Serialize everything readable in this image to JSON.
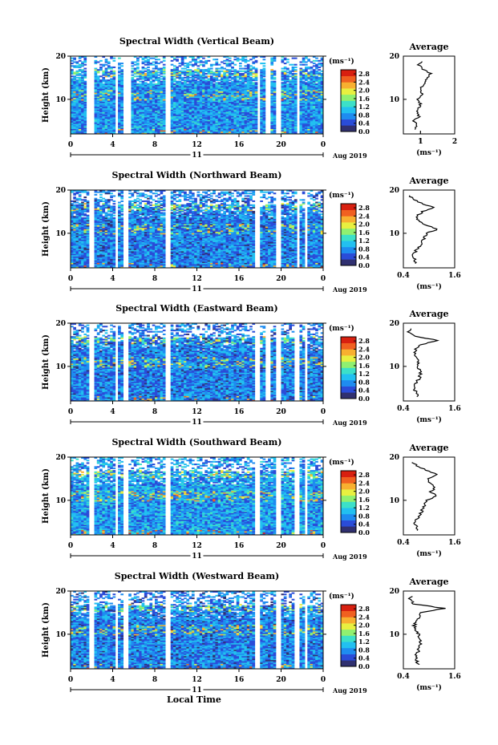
{
  "xaxis_label": "Local Time",
  "date_label": "Aug 2019",
  "day_label": "11",
  "cb_unit_label": "(ms⁻¹)",
  "avg_title": "Average",
  "avg_xlabel": "(ms⁻¹)",
  "colorscale": [
    "#303070",
    "#2a4cd8",
    "#1e8cf0",
    "#22c0f0",
    "#3ce0c8",
    "#90f070",
    "#e8f040",
    "#f8b030",
    "#f06020",
    "#d82010"
  ],
  "chart_data": [
    {
      "type": "heatmap",
      "title": "Spectral Width (Vertical Beam)",
      "ylabel": "Height (km)",
      "xlim": [
        0,
        24
      ],
      "ylim": [
        2,
        20
      ],
      "xticks": [
        "0",
        "4",
        "8",
        "12",
        "16",
        "20",
        "0"
      ],
      "yticks": [
        "10",
        "20"
      ],
      "colorbar": {
        "ticks": [
          "0.0",
          "0.4",
          "0.8",
          "1.2",
          "1.6",
          "2.0",
          "2.4",
          "2.8"
        ],
        "range": [
          0,
          3.0
        ]
      },
      "typical_value": 0.8,
      "data_gaps_hours": [
        [
          1.6,
          2.3
        ],
        [
          4.2,
          4.5
        ],
        [
          5.0,
          5.7
        ],
        [
          9.0,
          9.4
        ],
        [
          17.7,
          18.1
        ],
        [
          18.6,
          18.9
        ],
        [
          19.6,
          20.1
        ],
        [
          21.4,
          21.8
        ],
        [
          22.4,
          22.6
        ]
      ],
      "average_profile": {
        "xlim": [
          0.5,
          2
        ],
        "xticks": [
          "1",
          "1",
          "2"
        ],
        "yticks": [
          "10",
          "20"
        ],
        "height_km": [
          3,
          4,
          5,
          6,
          7,
          8,
          9,
          10,
          11,
          12,
          13,
          14,
          15,
          16,
          17,
          18,
          19
        ],
        "width_ms": [
          0.85,
          0.9,
          0.8,
          0.95,
          0.9,
          0.95,
          1.0,
          0.9,
          1.05,
          1.0,
          1.05,
          1.15,
          1.2,
          1.3,
          1.05,
          0.95,
          1.1
        ]
      }
    },
    {
      "type": "heatmap",
      "title": "Spectral Width (Northward Beam)",
      "ylabel": "Height (km)",
      "xlim": [
        0,
        24
      ],
      "ylim": [
        2,
        20
      ],
      "xticks": [
        "0",
        "4",
        "8",
        "12",
        "16",
        "20",
        "0"
      ],
      "yticks": [
        "10",
        "20"
      ],
      "colorbar": {
        "ticks": [
          "0.0",
          "0.4",
          "0.8",
          "1.2",
          "1.6",
          "2.0",
          "2.4",
          "2.8"
        ],
        "range": [
          0,
          3.0
        ]
      },
      "typical_value": 0.7,
      "data_gaps_hours": [
        [
          1.8,
          2.3
        ],
        [
          4.3,
          4.6
        ],
        [
          5.0,
          5.6
        ],
        [
          9.1,
          9.4
        ],
        [
          17.6,
          18.0
        ],
        [
          19.6,
          20.0
        ],
        [
          21.4,
          21.8
        ],
        [
          22.3,
          22.6
        ]
      ],
      "average_profile": {
        "xlim": [
          0.4,
          1.6
        ],
        "xticks": [
          "0.4",
          "1.6"
        ],
        "yticks": [
          "10",
          "20"
        ],
        "height_km": [
          3,
          4,
          5,
          6,
          7,
          8,
          9,
          10,
          11,
          12,
          13,
          14,
          15,
          16,
          17,
          18,
          19
        ],
        "width_ms": [
          0.7,
          0.65,
          0.6,
          0.7,
          0.8,
          0.85,
          0.9,
          0.95,
          1.2,
          0.9,
          0.75,
          0.7,
          0.85,
          1.1,
          0.8,
          0.6,
          0.55
        ]
      }
    },
    {
      "type": "heatmap",
      "title": "Spectral Width (Eastward Beam)",
      "ylabel": "Height (km)",
      "xlim": [
        0,
        24
      ],
      "ylim": [
        2,
        20
      ],
      "xticks": [
        "0",
        "4",
        "8",
        "12",
        "16",
        "20",
        "0"
      ],
      "yticks": [
        "10",
        "20"
      ],
      "colorbar": {
        "ticks": [
          "0.0",
          "0.4",
          "0.8",
          "1.2",
          "1.6",
          "2.0",
          "2.4",
          "2.8"
        ],
        "range": [
          0,
          3.0
        ]
      },
      "typical_value": 0.7,
      "data_gaps_hours": [
        [
          1.8,
          2.3
        ],
        [
          4.3,
          4.6
        ],
        [
          5.0,
          5.6
        ],
        [
          9.1,
          9.4
        ],
        [
          17.6,
          18.0
        ],
        [
          18.6,
          18.9
        ],
        [
          19.5,
          19.9
        ],
        [
          21.3,
          21.7
        ],
        [
          22.3,
          22.6
        ]
      ],
      "average_profile": {
        "xlim": [
          0.4,
          1.6
        ],
        "xticks": [
          "0.4",
          "1.6"
        ],
        "yticks": [
          "10",
          "20"
        ],
        "height_km": [
          3,
          4,
          5,
          6,
          7,
          8,
          9,
          10,
          11,
          12,
          13,
          14,
          15,
          16,
          17,
          18,
          19
        ],
        "width_ms": [
          0.75,
          0.7,
          0.65,
          0.7,
          0.75,
          0.8,
          0.8,
          0.75,
          0.75,
          0.7,
          0.65,
          0.7,
          0.8,
          1.2,
          0.7,
          0.5,
          0.6
        ]
      }
    },
    {
      "type": "heatmap",
      "title": "Spectral Width (Southward Beam)",
      "ylabel": "Height (km)",
      "xlim": [
        0,
        24
      ],
      "ylim": [
        2,
        20
      ],
      "xticks": [
        "0",
        "4",
        "8",
        "12",
        "16",
        "20",
        "0"
      ],
      "yticks": [
        "10",
        "20"
      ],
      "colorbar": {
        "ticks": [
          "0.0",
          "0.4",
          "0.8",
          "1.2",
          "1.6",
          "2.0",
          "2.4",
          "2.8"
        ],
        "range": [
          0,
          3.0
        ]
      },
      "typical_value": 0.85,
      "data_gaps_hours": [
        [
          1.8,
          2.3
        ],
        [
          4.3,
          4.6
        ],
        [
          5.0,
          5.6
        ],
        [
          9.1,
          9.4
        ],
        [
          17.6,
          18.0
        ],
        [
          19.5,
          19.9
        ],
        [
          21.3,
          21.7
        ],
        [
          22.3,
          22.6
        ]
      ],
      "average_profile": {
        "xlim": [
          0.4,
          1.6
        ],
        "xticks": [
          "0.4",
          "1.6"
        ],
        "yticks": [
          "10",
          "20"
        ],
        "height_km": [
          3,
          4,
          5,
          6,
          7,
          8,
          9,
          10,
          11,
          12,
          13,
          14,
          15,
          16,
          17,
          18,
          19
        ],
        "width_ms": [
          0.75,
          0.7,
          0.65,
          0.75,
          0.8,
          0.85,
          0.9,
          0.95,
          1.15,
          1.05,
          1.15,
          1.0,
          1.0,
          1.2,
          0.95,
          0.7,
          0.6
        ]
      }
    },
    {
      "type": "heatmap",
      "title": "Spectral Width (Westward Beam)",
      "ylabel": "Height (km)",
      "xlim": [
        0,
        24
      ],
      "ylim": [
        2,
        20
      ],
      "xticks": [
        "0",
        "4",
        "8",
        "12",
        "16",
        "20",
        "0"
      ],
      "yticks": [
        "10",
        "20"
      ],
      "colorbar": {
        "ticks": [
          "0.0",
          "0.4",
          "0.8",
          "1.2",
          "1.6",
          "2.0",
          "2.4",
          "2.8"
        ],
        "range": [
          0,
          3.0
        ]
      },
      "typical_value": 0.7,
      "data_gaps_hours": [
        [
          1.8,
          2.3
        ],
        [
          4.3,
          4.6
        ],
        [
          5.0,
          5.6
        ],
        [
          9.1,
          9.4
        ],
        [
          17.6,
          18.0
        ],
        [
          19.5,
          19.9
        ],
        [
          21.3,
          21.7
        ],
        [
          22.3,
          22.6
        ]
      ],
      "average_profile": {
        "xlim": [
          0.4,
          1.6
        ],
        "xticks": [
          "0.4",
          "1.6"
        ],
        "yticks": [
          "10",
          "20"
        ],
        "height_km": [
          3,
          4,
          5,
          6,
          7,
          8,
          9,
          10,
          11,
          12,
          13,
          14,
          15,
          16,
          17,
          18,
          19
        ],
        "width_ms": [
          0.75,
          0.7,
          0.7,
          0.75,
          0.75,
          0.8,
          0.8,
          0.75,
          0.7,
          0.65,
          0.7,
          0.8,
          0.8,
          1.35,
          0.65,
          0.55,
          0.6
        ]
      }
    }
  ]
}
